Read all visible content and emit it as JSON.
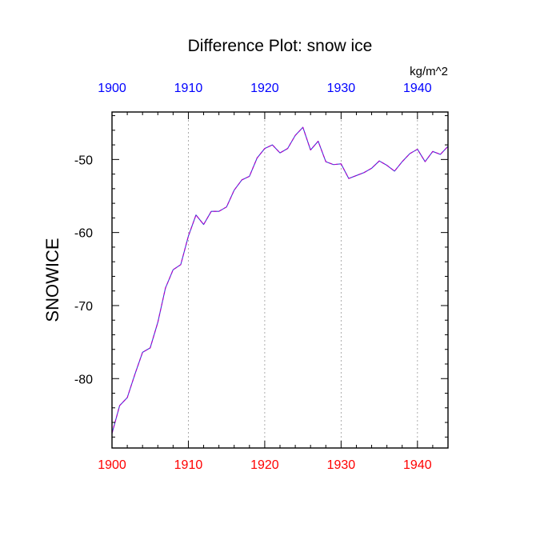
{
  "colors": {
    "bottom_axis_labels": "#ff0000",
    "top_axis_labels": "#0000ff",
    "y_axis_labels": "#000000",
    "series_line": "#b000c8",
    "series_line_accent": "#3b3bd6",
    "grid": "#999999",
    "frame": "#000000"
  },
  "chart_data": {
    "type": "line",
    "title": "Difference Plot: snow ice",
    "ylabel": "SNOWICE",
    "units": "kg/m^2",
    "xlim": [
      1900,
      1944
    ],
    "ylim": [
      -89.5,
      -43.5
    ],
    "x_ticks": [
      1900,
      1910,
      1920,
      1930,
      1940
    ],
    "x_tick_labels": [
      "1900",
      "1910",
      "1920",
      "1930",
      "1940"
    ],
    "top_x_ticks": [
      1900,
      1910,
      1920,
      1930,
      1940
    ],
    "top_x_tick_labels": [
      "1900",
      "1910",
      "1920",
      "1930",
      "1940"
    ],
    "y_ticks": [
      -80,
      -70,
      -60,
      -50
    ],
    "y_tick_labels": [
      "-80",
      "-70",
      "-60",
      "-50"
    ],
    "x_grid": true,
    "line_style": "dashed",
    "series": [
      {
        "x": [
          1900,
          1901,
          1902,
          1903,
          1904,
          1905,
          1906,
          1907,
          1908,
          1909,
          1910,
          1911,
          1912,
          1913,
          1914,
          1915,
          1916,
          1917,
          1918,
          1919,
          1920,
          1921,
          1922,
          1923,
          1924,
          1925,
          1926,
          1927,
          1928,
          1929,
          1930,
          1931,
          1932,
          1933,
          1934,
          1935,
          1936,
          1937,
          1938,
          1939,
          1940,
          1941,
          1942,
          1943,
          1944
        ],
        "values": [
          -87.5,
          -83.7,
          -82.6,
          -79.4,
          -76.4,
          -75.8,
          -72.3,
          -67.6,
          -65.1,
          -64.4,
          -60.5,
          -57.6,
          -58.9,
          -57.1,
          -57.1,
          -56.5,
          -54.2,
          -52.8,
          -52.3,
          -49.8,
          -48.5,
          -48.0,
          -49.1,
          -48.5,
          -46.7,
          -45.6,
          -48.7,
          -47.5,
          -50.3,
          -50.7,
          -50.6,
          -52.6,
          -52.2,
          -51.8,
          -51.2,
          -50.2,
          -50.8,
          -51.6,
          -50.3,
          -49.2,
          -48.6,
          -50.3,
          -48.9,
          -49.3,
          -48.2
        ]
      }
    ]
  }
}
